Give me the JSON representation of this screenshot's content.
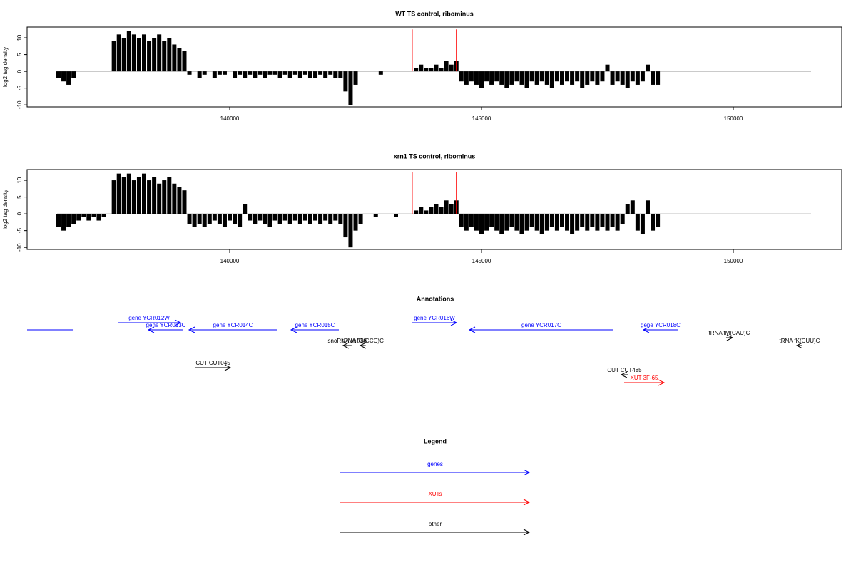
{
  "chart_data": [
    {
      "type": "bar",
      "title": "WT TS control, ribominus",
      "ylabel": "log2 tag density",
      "color": "#000000",
      "xlim": [
        135977,
        152153
      ],
      "ylim": [
        -10.6,
        13.2
      ],
      "xticks": [
        140000,
        145000,
        150000
      ],
      "yticks": [
        -10,
        -5,
        0,
        5,
        10
      ],
      "x": [
        136600,
        136700,
        136800,
        136900,
        137000,
        137100,
        137200,
        137300,
        137400,
        137500,
        137600,
        137700,
        137800,
        137900,
        138000,
        138100,
        138200,
        138300,
        138400,
        138500,
        138600,
        138700,
        138800,
        138900,
        139000,
        139100,
        139200,
        139300,
        139400,
        139500,
        139600,
        139700,
        139800,
        139900,
        140000,
        140100,
        140200,
        140300,
        140400,
        140500,
        140600,
        140700,
        140800,
        140900,
        141000,
        141100,
        141200,
        141300,
        141400,
        141500,
        141600,
        141700,
        141800,
        141900,
        142000,
        142100,
        142200,
        142300,
        142400,
        142500,
        142600,
        142700,
        142800,
        142900,
        143000,
        143100,
        143200,
        143300,
        143400,
        143500,
        143600,
        143700,
        143800,
        143900,
        144000,
        144100,
        144200,
        144300,
        144400,
        144500,
        144600,
        144700,
        144800,
        144900,
        145000,
        145100,
        145200,
        145300,
        145400,
        145500,
        145600,
        145700,
        145800,
        145900,
        146000,
        146100,
        146200,
        146300,
        146400,
        146500,
        146600,
        146700,
        146800,
        146900,
        147000,
        147100,
        147200,
        147300,
        147400,
        147500,
        147600,
        147700,
        147800,
        147900,
        148000,
        148100,
        148200,
        148300,
        148400,
        148500
      ],
      "values": [
        -2,
        -3,
        -4,
        -2,
        0,
        0,
        0,
        0,
        0,
        0,
        0,
        9,
        11,
        10,
        12,
        11,
        10,
        11,
        9,
        10,
        11,
        9,
        10,
        8,
        7,
        6,
        -1,
        0,
        -2,
        -1,
        0,
        -2,
        -1,
        -1,
        0,
        -2,
        -1,
        -2,
        -1,
        -2,
        -1,
        -2,
        -1,
        -1,
        -2,
        -1,
        -2,
        -1,
        -2,
        -1,
        -2,
        -2,
        -1,
        -2,
        -1,
        -2,
        -2,
        -6,
        -10,
        -4,
        0,
        0,
        0,
        0,
        -1,
        0,
        0,
        0,
        0,
        0,
        0,
        1,
        2,
        1,
        1,
        2,
        1,
        3,
        2,
        3,
        -3,
        -4,
        -3,
        -4,
        -5,
        -3,
        -4,
        -3,
        -4,
        -5,
        -4,
        -3,
        -4,
        -5,
        -3,
        -4,
        -3,
        -4,
        -5,
        -3,
        -4,
        -3,
        -4,
        -3,
        -5,
        -4,
        -3,
        -4,
        -3,
        2,
        -4,
        -3,
        -4,
        -5,
        -3,
        -4,
        -3,
        2,
        -4,
        -4
      ],
      "highlights": {
        "color": "#ff0000",
        "x": [
          143625,
          144500
        ],
        "values": [
          12.5,
          12.5
        ]
      }
    },
    {
      "type": "bar",
      "title": "xrn1 TS control, ribominus",
      "ylabel": "log2 tag density",
      "color": "#000000",
      "xlim": [
        135977,
        152153
      ],
      "ylim": [
        -10.6,
        13.2
      ],
      "xticks": [
        140000,
        145000,
        150000
      ],
      "yticks": [
        -10,
        -5,
        0,
        5,
        10
      ],
      "x": [
        136600,
        136700,
        136800,
        136900,
        137000,
        137100,
        137200,
        137300,
        137400,
        137500,
        137600,
        137700,
        137800,
        137900,
        138000,
        138100,
        138200,
        138300,
        138400,
        138500,
        138600,
        138700,
        138800,
        138900,
        139000,
        139100,
        139200,
        139300,
        139400,
        139500,
        139600,
        139700,
        139800,
        139900,
        140000,
        140100,
        140200,
        140300,
        140400,
        140500,
        140600,
        140700,
        140800,
        140900,
        141000,
        141100,
        141200,
        141300,
        141400,
        141500,
        141600,
        141700,
        141800,
        141900,
        142000,
        142100,
        142200,
        142300,
        142400,
        142500,
        142600,
        142700,
        142800,
        142900,
        143000,
        143100,
        143200,
        143300,
        143400,
        143500,
        143600,
        143700,
        143800,
        143900,
        144000,
        144100,
        144200,
        144300,
        144400,
        144500,
        144600,
        144700,
        144800,
        144900,
        145000,
        145100,
        145200,
        145300,
        145400,
        145500,
        145600,
        145700,
        145800,
        145900,
        146000,
        146100,
        146200,
        146300,
        146400,
        146500,
        146600,
        146700,
        146800,
        146900,
        147000,
        147100,
        147200,
        147300,
        147400,
        147500,
        147600,
        147700,
        147800,
        147900,
        148000,
        148100,
        148200,
        148300,
        148400,
        148500
      ],
      "values": [
        -4,
        -5,
        -4,
        -3,
        -2,
        -1,
        -2,
        -1,
        -2,
        -1,
        0,
        10,
        12,
        11,
        12,
        10,
        11,
        12,
        10,
        11,
        9,
        10,
        11,
        9,
        8,
        7,
        -3,
        -4,
        -3,
        -4,
        -3,
        -2,
        -3,
        -4,
        -2,
        -3,
        -4,
        3,
        -2,
        -3,
        -2,
        -3,
        -4,
        -2,
        -3,
        -2,
        -3,
        -2,
        -3,
        -2,
        -3,
        -2,
        -3,
        -2,
        -3,
        -2,
        -3,
        -7,
        -10,
        -5,
        -3,
        0,
        0,
        -1,
        0,
        0,
        0,
        -1,
        0,
        0,
        0,
        1,
        2,
        1,
        2,
        3,
        2,
        4,
        3,
        4,
        -4,
        -5,
        -4,
        -5,
        -6,
        -5,
        -4,
        -5,
        -6,
        -5,
        -4,
        -5,
        -6,
        -5,
        -4,
        -5,
        -6,
        -5,
        -4,
        -5,
        -4,
        -5,
        -6,
        -5,
        -4,
        -5,
        -4,
        -5,
        -4,
        -5,
        -4,
        -5,
        -3,
        3,
        4,
        -5,
        -6,
        4,
        -5,
        -4
      ],
      "highlights": {
        "color": "#ff0000",
        "x": [
          143625,
          144500
        ],
        "values": [
          12.5,
          12.5
        ]
      }
    }
  ],
  "annotations": {
    "title": "Annotations",
    "features": [
      {
        "label": null,
        "color": "#0000ff",
        "start": 135977,
        "end": 136898,
        "strand": "."
      },
      {
        "label": "gene YCR012W",
        "color": "#0000ff",
        "start": 137776,
        "end": 139023,
        "strand": "+"
      },
      {
        "label": "gene YCR013C",
        "color": "#0000ff",
        "start": 138385,
        "end": 139079,
        "strand": "-"
      },
      {
        "label": "gene YCR014C",
        "color": "#0000ff",
        "start": 139192,
        "end": 140935,
        "strand": "-"
      },
      {
        "label": "gene YCR015C",
        "color": "#0000ff",
        "start": 141218,
        "end": 142167,
        "strand": "-"
      },
      {
        "label": "gene YCR016W",
        "color": "#0000ff",
        "start": 143626,
        "end": 144504,
        "strand": "+"
      },
      {
        "label": "gene YCR017C",
        "color": "#0000ff",
        "start": 144759,
        "end": 147620,
        "strand": "-"
      },
      {
        "label": "gene YCR018C",
        "color": "#0000ff",
        "start": 148215,
        "end": 148895,
        "strand": "-"
      },
      {
        "label": "tRNA fM(CAU)C",
        "color": "#000000",
        "start": 149858,
        "end": 149985,
        "strand": "+"
      },
      {
        "label": "tRNA fK(CUU)C",
        "color": "#000000",
        "start": 151260,
        "end": 151374,
        "strand": "-"
      },
      {
        "label": "snoRNA snR86",
        "color": "#000000",
        "start": 142250,
        "end": 142420,
        "strand": "-"
      },
      {
        "label": "tRNA tG(GCC)C",
        "color": "#000000",
        "start": 142590,
        "end": 142700,
        "strand": "-"
      },
      {
        "label": "CUT CUT045",
        "color": "#000000",
        "start": 139320,
        "end": 140014,
        "strand": "+"
      },
      {
        "label": "CUT CUT485",
        "color": "#000000",
        "start": 147775,
        "end": 147904,
        "strand": "-"
      },
      {
        "label": "XUT 3F-65",
        "color": "#ff0000",
        "start": 147833,
        "end": 148626,
        "strand": "+"
      }
    ]
  },
  "legend": {
    "title": "Legend",
    "items": [
      {
        "name": "genes",
        "color": "#0000ff"
      },
      {
        "name": "XUTs",
        "color": "#ff0000"
      },
      {
        "name": "other",
        "color": "#000000"
      }
    ]
  }
}
